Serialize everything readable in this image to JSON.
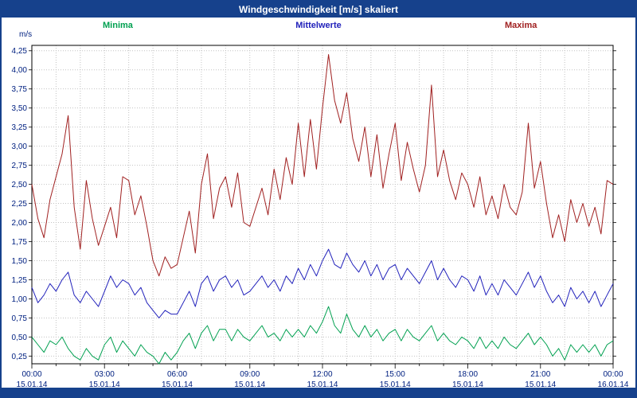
{
  "title_bar": {
    "title": "Windgeschwindigkeit [m/s] skaliert"
  },
  "colors": {
    "chrome_blue": "#16418c",
    "grid": "#c2c2c2",
    "axis_text": "#002080",
    "tick": "#333333",
    "plot_border": "#000000"
  },
  "chart_data": {
    "type": "line",
    "title": "Windgeschwindigkeit [m/s] skaliert",
    "xlabel": "",
    "ylabel": "m/s",
    "ylim": [
      0.15,
      4.32
    ],
    "grid": "dotted",
    "legend_position": "top",
    "x_start": "15.01.14 00:00",
    "x_end": "16.01.14 00:00",
    "x_point_interval_minutes": 15,
    "x_major_tick_interval_hours": 3,
    "x_minor_gridline_interval_hours": 1,
    "y_tick_values": [
      4.25,
      4.0,
      3.75,
      3.5,
      3.25,
      3.0,
      2.75,
      2.5,
      2.25,
      2.0,
      1.75,
      1.5,
      1.25,
      1.0,
      0.75,
      0.5,
      0.25
    ],
    "y_tick_labels": [
      "4,25",
      "4,00",
      "3,75",
      "3,50",
      "3,25",
      "3,00",
      "2,75",
      "2,50",
      "2,25",
      "2,00",
      "1,75",
      "1,50",
      "1,25",
      "1,00",
      "0,75",
      "0,50",
      "0,25"
    ],
    "x_tick_labels": [
      "00:00",
      "03:00",
      "06:00",
      "09:00",
      "12:00",
      "15:00",
      "18:00",
      "21:00",
      "00:00"
    ],
    "x_tick_dates": [
      "15.01.14",
      "15.01.14",
      "15.01.14",
      "15.01.14",
      "15.01.14",
      "15.01.14",
      "15.01.14",
      "15.01.14",
      "16.01.14"
    ],
    "series": [
      {
        "name": "Minima",
        "color": "#00a050",
        "values": [
          0.5,
          0.4,
          0.3,
          0.45,
          0.4,
          0.5,
          0.35,
          0.25,
          0.2,
          0.35,
          0.25,
          0.2,
          0.4,
          0.5,
          0.3,
          0.45,
          0.35,
          0.25,
          0.4,
          0.3,
          0.25,
          0.15,
          0.3,
          0.2,
          0.3,
          0.45,
          0.55,
          0.35,
          0.55,
          0.65,
          0.45,
          0.6,
          0.6,
          0.45,
          0.6,
          0.5,
          0.45,
          0.55,
          0.65,
          0.5,
          0.55,
          0.45,
          0.6,
          0.5,
          0.6,
          0.5,
          0.65,
          0.55,
          0.7,
          0.9,
          0.65,
          0.55,
          0.8,
          0.6,
          0.5,
          0.65,
          0.5,
          0.6,
          0.45,
          0.55,
          0.6,
          0.45,
          0.6,
          0.5,
          0.45,
          0.55,
          0.65,
          0.45,
          0.55,
          0.45,
          0.4,
          0.5,
          0.45,
          0.35,
          0.5,
          0.35,
          0.45,
          0.35,
          0.5,
          0.4,
          0.35,
          0.45,
          0.55,
          0.4,
          0.5,
          0.4,
          0.25,
          0.35,
          0.2,
          0.4,
          0.3,
          0.4,
          0.3,
          0.4,
          0.25,
          0.4,
          0.45
        ]
      },
      {
        "name": "Mittelwerte",
        "color": "#2222bb",
        "values": [
          1.15,
          0.95,
          1.05,
          1.2,
          1.1,
          1.25,
          1.35,
          1.05,
          0.95,
          1.1,
          1.0,
          0.9,
          1.1,
          1.3,
          1.15,
          1.25,
          1.2,
          1.05,
          1.15,
          0.95,
          0.85,
          0.75,
          0.85,
          0.8,
          0.8,
          0.95,
          1.1,
          0.9,
          1.2,
          1.3,
          1.1,
          1.25,
          1.3,
          1.15,
          1.25,
          1.05,
          1.1,
          1.2,
          1.3,
          1.15,
          1.25,
          1.1,
          1.3,
          1.2,
          1.4,
          1.25,
          1.45,
          1.3,
          1.5,
          1.65,
          1.45,
          1.4,
          1.6,
          1.45,
          1.35,
          1.5,
          1.3,
          1.45,
          1.25,
          1.4,
          1.45,
          1.25,
          1.4,
          1.3,
          1.2,
          1.35,
          1.5,
          1.25,
          1.4,
          1.25,
          1.15,
          1.3,
          1.25,
          1.1,
          1.3,
          1.05,
          1.2,
          1.05,
          1.25,
          1.15,
          1.05,
          1.2,
          1.35,
          1.15,
          1.3,
          1.1,
          0.95,
          1.05,
          0.9,
          1.15,
          1.0,
          1.1,
          0.95,
          1.1,
          0.9,
          1.05,
          1.2
        ]
      },
      {
        "name": "Maxima",
        "color": "#a02020",
        "values": [
          2.5,
          2.05,
          1.8,
          2.3,
          2.6,
          2.9,
          3.4,
          2.2,
          1.65,
          2.55,
          2.05,
          1.7,
          1.95,
          2.2,
          1.8,
          2.6,
          2.55,
          2.1,
          2.35,
          1.95,
          1.5,
          1.3,
          1.55,
          1.4,
          1.45,
          1.8,
          2.15,
          1.6,
          2.5,
          2.9,
          2.05,
          2.45,
          2.6,
          2.2,
          2.65,
          2.0,
          1.95,
          2.2,
          2.45,
          2.1,
          2.7,
          2.3,
          2.85,
          2.5,
          3.3,
          2.6,
          3.35,
          2.7,
          3.5,
          4.2,
          3.6,
          3.3,
          3.7,
          3.1,
          2.8,
          3.25,
          2.6,
          3.15,
          2.45,
          2.9,
          3.3,
          2.55,
          3.05,
          2.7,
          2.4,
          2.75,
          3.8,
          2.6,
          2.95,
          2.55,
          2.3,
          2.65,
          2.5,
          2.2,
          2.6,
          2.1,
          2.35,
          2.05,
          2.5,
          2.2,
          2.1,
          2.4,
          3.3,
          2.45,
          2.8,
          2.25,
          1.8,
          2.1,
          1.75,
          2.3,
          2.0,
          2.25,
          1.95,
          2.2,
          1.85,
          2.55,
          2.5
        ]
      }
    ]
  }
}
